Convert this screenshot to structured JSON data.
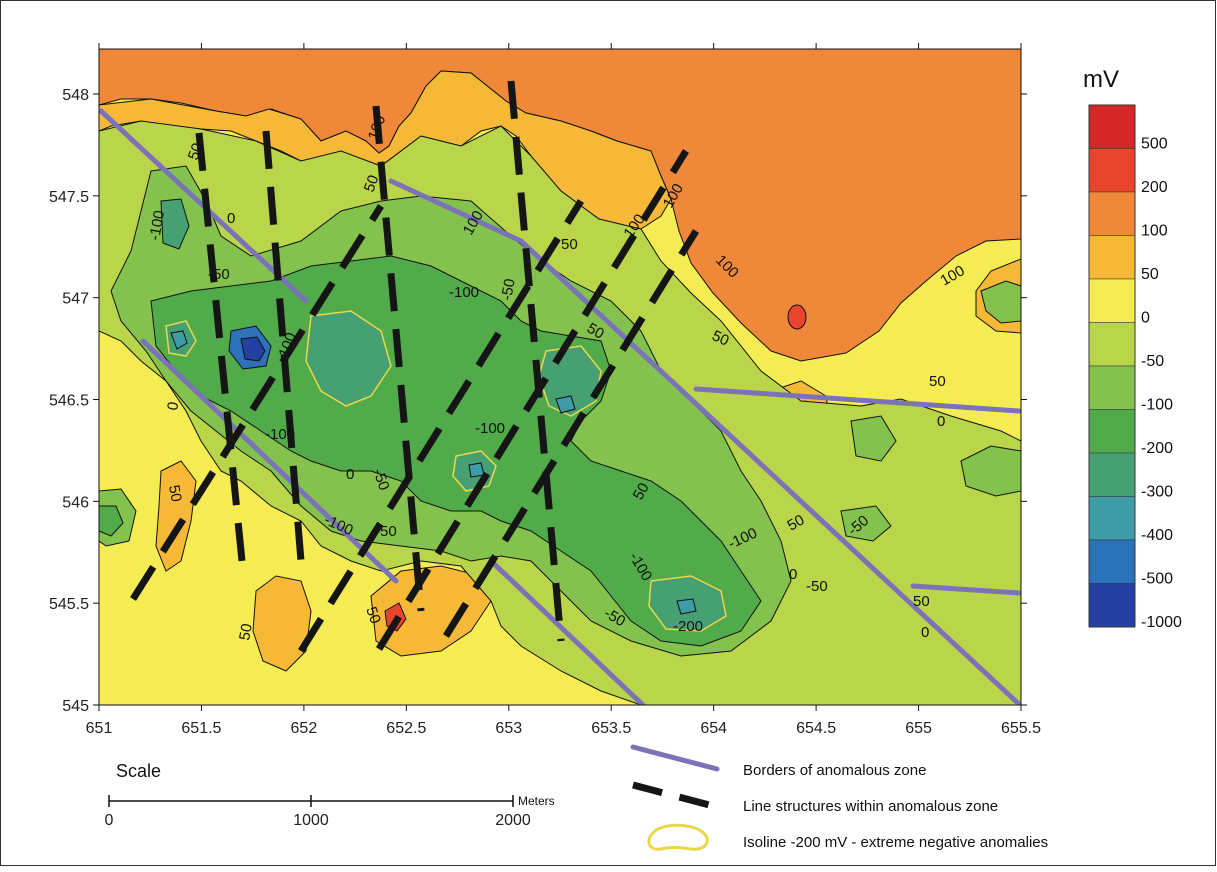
{
  "map": {
    "x_ticks": [
      "651",
      "651.5",
      "652",
      "652.5",
      "653",
      "653.5",
      "654",
      "654.5",
      "655",
      "655.5"
    ],
    "y_ticks": [
      "548",
      "547.5",
      "547",
      "546.5",
      "546",
      "545.5",
      "545"
    ],
    "contour_labels": [
      "100",
      "100",
      "100",
      "100",
      "100",
      "100",
      "50",
      "50",
      "50",
      "50",
      "50",
      "50",
      "50",
      "50",
      "50",
      "50",
      "50",
      "50",
      "0",
      "0",
      "0",
      "0",
      "0",
      "0",
      "-50",
      "-50",
      "-50",
      "-50",
      "-50",
      "-50",
      "-50",
      "-100",
      "-100",
      "-100",
      "-100",
      "-100",
      "-100",
      "-100",
      "-100",
      "-200"
    ]
  },
  "colorbar": {
    "title": "mV",
    "labels": [
      "500",
      "200",
      "100",
      "50",
      "0",
      "-50",
      "-100",
      "-200",
      "-300",
      "-400",
      "-500",
      "-1000"
    ],
    "colors": [
      "#d62728",
      "#e8452f",
      "#f0883a",
      "#f6b937",
      "#f5ec54",
      "#b9d64a",
      "#84c24e",
      "#52ab4a",
      "#46a071",
      "#3e9ca7",
      "#2c72b8",
      "#2540a0"
    ]
  },
  "scale": {
    "title": "Scale",
    "unit": "Meters",
    "ticks": [
      "0",
      "1000",
      "2000"
    ]
  },
  "legend": [
    {
      "label": "Borders of anomalous zone",
      "symbol": "solid-purple-line"
    },
    {
      "label": "Line structures within anomalous zone",
      "symbol": "dashed-black-line"
    },
    {
      "label": "Isoline -200 mV - extreme negative anomalies",
      "symbol": "yellow-loop"
    }
  ]
}
